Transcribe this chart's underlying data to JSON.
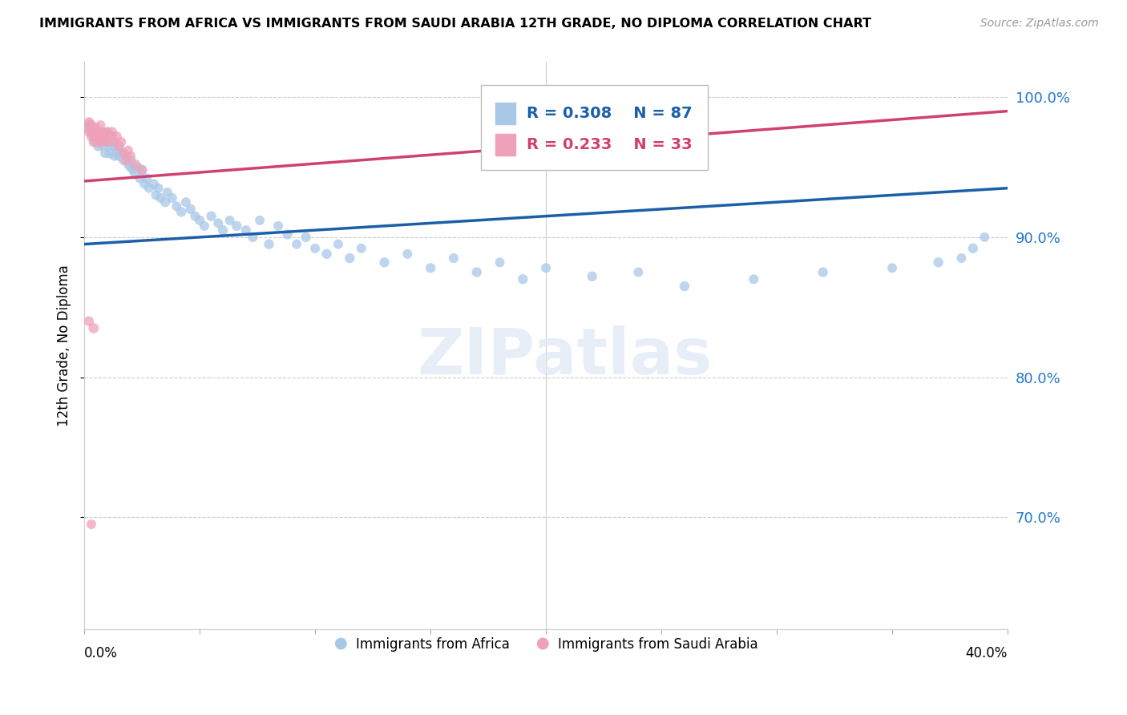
{
  "title": "IMMIGRANTS FROM AFRICA VS IMMIGRANTS FROM SAUDI ARABIA 12TH GRADE, NO DIPLOMA CORRELATION CHART",
  "source": "Source: ZipAtlas.com",
  "ylabel": "12th Grade, No Diploma",
  "xlim": [
    0.0,
    0.4
  ],
  "ylim": [
    0.62,
    1.025
  ],
  "yticks": [
    1.0,
    0.9,
    0.8,
    0.7
  ],
  "ytick_labels": [
    "100.0%",
    "90.0%",
    "80.0%",
    "70.0%"
  ],
  "xtick_positions": [
    0.0,
    0.05,
    0.1,
    0.15,
    0.2,
    0.25,
    0.3,
    0.35,
    0.4
  ],
  "legend_africa": "Immigrants from Africa",
  "legend_saudi": "Immigrants from Saudi Arabia",
  "R_africa": 0.308,
  "N_africa": 87,
  "R_saudi": 0.233,
  "N_saudi": 33,
  "color_africa": "#a8c8e8",
  "color_africa_line": "#1a5fa8",
  "color_saudi": "#f0a0b8",
  "color_saudi_line": "#d04070",
  "watermark": "ZIPatlas",
  "africa_x": [
    0.002,
    0.003,
    0.004,
    0.005,
    0.006,
    0.006,
    0.007,
    0.007,
    0.008,
    0.008,
    0.009,
    0.009,
    0.01,
    0.01,
    0.011,
    0.011,
    0.012,
    0.012,
    0.013,
    0.013,
    0.014,
    0.015,
    0.015,
    0.016,
    0.017,
    0.018,
    0.019,
    0.02,
    0.02,
    0.021,
    0.022,
    0.023,
    0.024,
    0.025,
    0.026,
    0.027,
    0.028,
    0.03,
    0.031,
    0.032,
    0.033,
    0.035,
    0.036,
    0.038,
    0.04,
    0.042,
    0.044,
    0.046,
    0.048,
    0.05,
    0.052,
    0.055,
    0.058,
    0.06,
    0.063,
    0.066,
    0.07,
    0.073,
    0.076,
    0.08,
    0.084,
    0.088,
    0.092,
    0.096,
    0.1,
    0.105,
    0.11,
    0.115,
    0.12,
    0.13,
    0.14,
    0.15,
    0.16,
    0.17,
    0.18,
    0.19,
    0.2,
    0.22,
    0.24,
    0.26,
    0.29,
    0.32,
    0.35,
    0.37,
    0.38,
    0.385,
    0.39
  ],
  "africa_y": [
    0.98,
    0.975,
    0.972,
    0.968,
    0.965,
    0.97,
    0.968,
    0.975,
    0.97,
    0.965,
    0.96,
    0.972,
    0.968,
    0.975,
    0.965,
    0.96,
    0.968,
    0.972,
    0.965,
    0.958,
    0.96,
    0.958,
    0.965,
    0.96,
    0.955,
    0.958,
    0.952,
    0.955,
    0.95,
    0.948,
    0.945,
    0.95,
    0.942,
    0.948,
    0.938,
    0.942,
    0.935,
    0.938,
    0.93,
    0.935,
    0.928,
    0.925,
    0.932,
    0.928,
    0.922,
    0.918,
    0.925,
    0.92,
    0.915,
    0.912,
    0.908,
    0.915,
    0.91,
    0.905,
    0.912,
    0.908,
    0.905,
    0.9,
    0.912,
    0.895,
    0.908,
    0.902,
    0.895,
    0.9,
    0.892,
    0.888,
    0.895,
    0.885,
    0.892,
    0.882,
    0.888,
    0.878,
    0.885,
    0.875,
    0.882,
    0.87,
    0.878,
    0.872,
    0.875,
    0.865,
    0.87,
    0.875,
    0.878,
    0.882,
    0.885,
    0.892,
    0.9
  ],
  "africa_sizes": [
    120,
    80,
    70,
    90,
    85,
    75,
    80,
    85,
    90,
    75,
    80,
    85,
    90,
    80,
    75,
    85,
    80,
    90,
    75,
    80,
    85,
    80,
    75,
    80,
    85,
    80,
    75,
    85,
    80,
    75,
    80,
    85,
    75,
    80,
    75,
    80,
    75,
    80,
    75,
    80,
    75,
    80,
    75,
    80,
    75,
    80,
    75,
    80,
    75,
    80,
    75,
    80,
    75,
    80,
    75,
    80,
    75,
    80,
    75,
    80,
    75,
    80,
    75,
    80,
    75,
    80,
    75,
    80,
    75,
    80,
    75,
    80,
    75,
    80,
    75,
    80,
    75,
    80,
    75,
    80,
    75,
    80,
    75,
    80,
    75,
    80,
    75
  ],
  "saudi_x": [
    0.001,
    0.002,
    0.002,
    0.003,
    0.003,
    0.004,
    0.004,
    0.005,
    0.005,
    0.006,
    0.006,
    0.007,
    0.007,
    0.008,
    0.008,
    0.009,
    0.01,
    0.01,
    0.011,
    0.012,
    0.013,
    0.014,
    0.015,
    0.016,
    0.017,
    0.018,
    0.019,
    0.02,
    0.022,
    0.025,
    0.002,
    0.004,
    0.003
  ],
  "saudi_y": [
    0.978,
    0.982,
    0.975,
    0.972,
    0.98,
    0.975,
    0.968,
    0.978,
    0.972,
    0.975,
    0.968,
    0.98,
    0.972,
    0.975,
    0.968,
    0.97,
    0.975,
    0.968,
    0.972,
    0.975,
    0.968,
    0.972,
    0.965,
    0.968,
    0.96,
    0.955,
    0.962,
    0.958,
    0.952,
    0.948,
    0.84,
    0.835,
    0.695
  ],
  "saudi_sizes": [
    80,
    85,
    75,
    80,
    85,
    75,
    80,
    85,
    75,
    80,
    85,
    75,
    80,
    85,
    75,
    80,
    85,
    75,
    80,
    85,
    75,
    80,
    85,
    75,
    80,
    85,
    75,
    80,
    85,
    75,
    80,
    85,
    75
  ]
}
